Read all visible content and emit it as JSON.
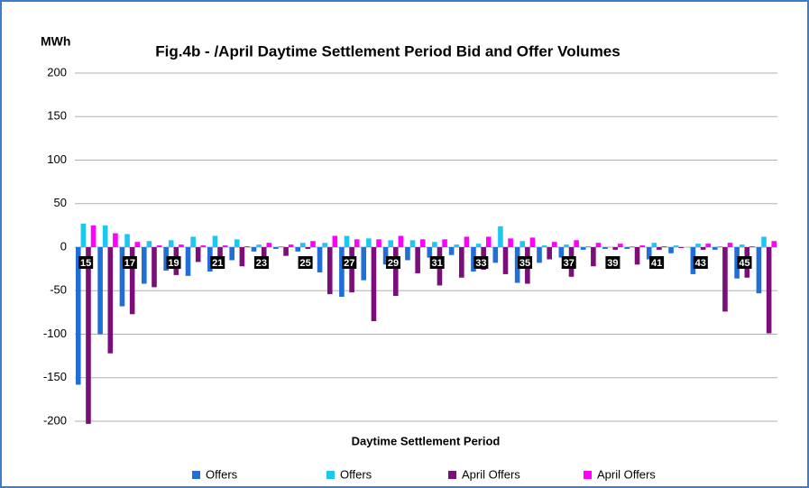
{
  "chart_data": {
    "type": "bar",
    "title": "Fig.4b - /April Daytime Settlement Period Bid and Offer Volumes",
    "y_label": "MWh",
    "x_label": "Daytime Settlement Period",
    "categories": [
      "15",
      null,
      "17",
      null,
      "19",
      null,
      "21",
      null,
      "23",
      null,
      "25",
      null,
      "27",
      null,
      "29",
      null,
      "31",
      null,
      "33",
      null,
      "35",
      null,
      "37",
      null,
      "39",
      null,
      "41",
      null,
      "43",
      null,
      "45",
      null
    ],
    "series": [
      {
        "name": "Offers",
        "color": "#1f6fd6",
        "values": [
          -158,
          -100,
          -68,
          -42,
          -27,
          -33,
          -28,
          -15,
          -5,
          -2,
          -5,
          -29,
          -57,
          -38,
          -20,
          -15,
          -12,
          -9,
          -28,
          -18,
          -41,
          -18,
          -12,
          -3,
          -2,
          -2,
          -14,
          -7,
          -31,
          -3,
          -36,
          -53
        ]
      },
      {
        "name": "Offers",
        "color": "#1cc8f2",
        "values": [
          27,
          25,
          15,
          7,
          8,
          12,
          13,
          9,
          3,
          1,
          5,
          5,
          13,
          10,
          8,
          8,
          6,
          3,
          4,
          24,
          7,
          2,
          3,
          1,
          0,
          1,
          5,
          2,
          4,
          1,
          3,
          12
        ]
      },
      {
        "name": "April Offers",
        "color": "#7a0f7a",
        "values": [
          -203,
          -122,
          -77,
          -46,
          -32,
          -17,
          -22,
          -22,
          -25,
          -10,
          -2,
          -54,
          -52,
          -85,
          -56,
          -30,
          -44,
          -35,
          -26,
          -31,
          -42,
          -14,
          -34,
          -22,
          -3,
          -20,
          -3,
          -1,
          -3,
          -74,
          -35,
          -99
        ]
      },
      {
        "name": "April Offers",
        "color": "#ff00ff",
        "values": [
          25,
          16,
          6,
          2,
          3,
          2,
          2,
          1,
          5,
          3,
          7,
          13,
          9,
          9,
          13,
          9,
          9,
          12,
          12,
          10,
          11,
          6,
          8,
          5,
          4,
          2,
          1,
          0,
          4,
          5,
          1,
          7
        ]
      }
    ],
    "ylim": [
      -200,
      200
    ],
    "yticks": [
      -200,
      -150,
      -100,
      -50,
      0,
      50,
      100,
      150,
      200
    ],
    "grid": true
  }
}
